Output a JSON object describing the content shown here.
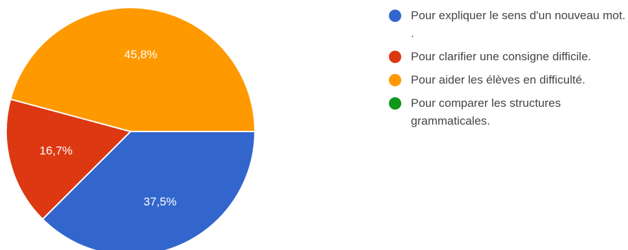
{
  "chart_data": {
    "type": "pie",
    "slices": [
      {
        "label": "Pour expliquer le sens d'un nouveau mot. .",
        "value": 37.5,
        "value_label": "37,5%",
        "color": "#3366cc"
      },
      {
        "label": "Pour clarifier une consigne difficile.",
        "value": 16.7,
        "value_label": "16,7%",
        "color": "#dc3912"
      },
      {
        "label": "Pour aider les élèves en difficulté.",
        "value": 45.8,
        "value_label": "45,8%",
        "color": "#ff9900"
      },
      {
        "label": "Pour comparer les structures grammaticales.",
        "value": 0,
        "value_label": "",
        "color": "#109618"
      }
    ],
    "legend_position": "right",
    "start_direction": "east",
    "direction": "clockwise"
  }
}
